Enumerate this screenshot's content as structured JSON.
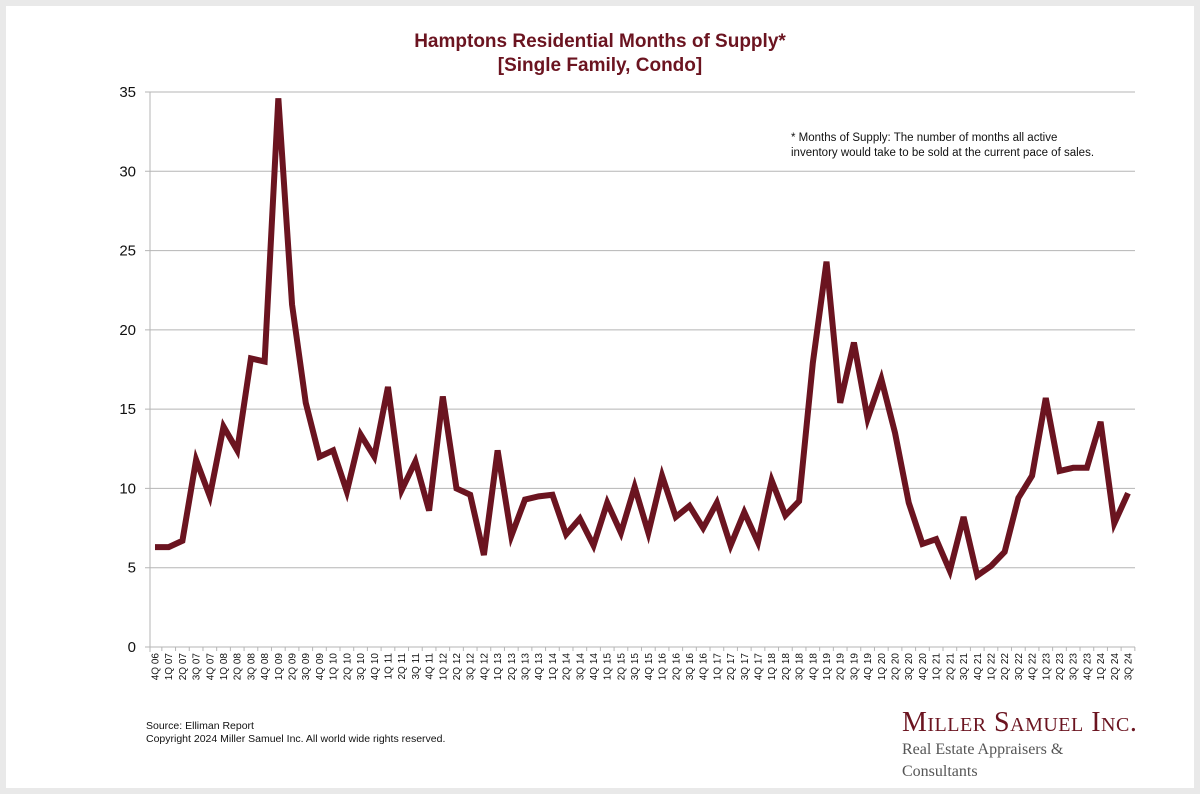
{
  "chart_data": {
    "type": "line",
    "title": "Hamptons Residential Months of Supply*",
    "subtitle": "[Single Family, Condo]",
    "xlabel": "",
    "ylabel": "",
    "ylim": [
      0,
      35
    ],
    "yticks": [
      "0",
      "5",
      "10",
      "15",
      "20",
      "25",
      "30",
      "35"
    ],
    "grid": true,
    "line_color": "#6b1420",
    "categories": [
      "4Q 06",
      "1Q 07",
      "2Q 07",
      "3Q 07",
      "4Q 07",
      "1Q 08",
      "2Q 08",
      "3Q 08",
      "4Q 08",
      "1Q 09",
      "2Q 09",
      "3Q 09",
      "4Q 09",
      "1Q 10",
      "2Q 10",
      "3Q 10",
      "4Q 10",
      "1Q 11",
      "2Q 11",
      "3Q 11",
      "4Q 11",
      "1Q 12",
      "2Q 12",
      "3Q 12",
      "4Q 12",
      "1Q 13",
      "2Q 13",
      "3Q 13",
      "4Q 13",
      "1Q 14",
      "2Q 14",
      "3Q 14",
      "4Q 14",
      "1Q 15",
      "2Q 15",
      "3Q 15",
      "4Q 15",
      "1Q 16",
      "2Q 16",
      "3Q 16",
      "4Q 16",
      "1Q 17",
      "2Q 17",
      "3Q 17",
      "4Q 17",
      "1Q 18",
      "2Q 18",
      "3Q 18",
      "4Q 18",
      "1Q 19",
      "2Q 19",
      "3Q 19",
      "4Q 19",
      "1Q 20",
      "2Q 20",
      "3Q 20",
      "4Q 20",
      "1Q 21",
      "2Q 21",
      "3Q 21",
      "4Q 21",
      "1Q 22",
      "2Q 22",
      "3Q 22",
      "4Q 22",
      "1Q 23",
      "2Q 23",
      "3Q 23",
      "4Q 23",
      "1Q 24",
      "2Q 24",
      "3Q 24"
    ],
    "series": [
      {
        "name": "Months of Supply",
        "values": [
          6.3,
          6.3,
          6.7,
          11.8,
          9.5,
          13.9,
          12.4,
          18.2,
          18.0,
          34.6,
          21.6,
          15.4,
          12.0,
          12.4,
          9.8,
          13.4,
          12.0,
          16.4,
          9.9,
          11.7,
          8.6,
          15.8,
          10.0,
          9.6,
          5.8,
          12.4,
          7.0,
          9.3,
          9.5,
          9.6,
          7.1,
          8.1,
          6.4,
          9.1,
          7.2,
          10.1,
          7.2,
          10.8,
          8.2,
          8.9,
          7.5,
          9.1,
          6.4,
          8.5,
          6.6,
          10.5,
          8.3,
          9.2,
          17.9,
          24.3,
          15.4,
          19.2,
          14.4,
          16.9,
          13.5,
          9.1,
          6.5,
          6.8,
          4.8,
          8.2,
          4.5,
          5.1,
          6.0,
          9.4,
          10.8,
          15.7,
          11.1,
          11.3,
          11.3,
          14.2,
          7.8,
          9.7
        ]
      }
    ],
    "annotation": {
      "line1": "* Months of Supply: The number of months all active",
      "line2": "inventory would take to be sold at the current pace of sales."
    }
  },
  "footer": {
    "source": "Source: Elliman Report",
    "copyright": "Copyright 2024 Miller Samuel Inc.  All world wide rights reserved."
  },
  "logo": {
    "name": "Miller Samuel Inc.",
    "tagline": "Real Estate Appraisers & Consultants"
  }
}
